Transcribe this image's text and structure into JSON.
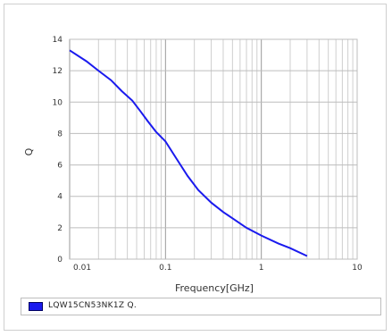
{
  "chart_data": {
    "type": "line",
    "xscale": "log",
    "xlim": [
      0.01,
      10
    ],
    "ylim": [
      0,
      14
    ],
    "grid": true,
    "xlabel": "Frequency[GHz]",
    "ylabel": "Q",
    "x_ticks": [
      {
        "value": 0.01,
        "label": "0.01"
      },
      {
        "value": 0.1,
        "label": "0.1"
      },
      {
        "value": 1,
        "label": "1"
      },
      {
        "value": 10,
        "label": "10"
      }
    ],
    "y_ticks": [
      {
        "value": 0,
        "label": "0"
      },
      {
        "value": 2,
        "label": "2"
      },
      {
        "value": 4,
        "label": "4"
      },
      {
        "value": 6,
        "label": "6"
      },
      {
        "value": 8,
        "label": "8"
      },
      {
        "value": 10,
        "label": "10"
      },
      {
        "value": 12,
        "label": "12"
      },
      {
        "value": 14,
        "label": "14"
      }
    ],
    "series": [
      {
        "name": "LQW15CN53NK1Z Q.",
        "color": "#1a1aee",
        "x": [
          0.01,
          0.015,
          0.02,
          0.027,
          0.035,
          0.045,
          0.055,
          0.065,
          0.08,
          0.1,
          0.13,
          0.17,
          0.22,
          0.3,
          0.4,
          0.5,
          0.7,
          1.0,
          1.5,
          2.0,
          3.0
        ],
        "y": [
          13.3,
          12.6,
          12.0,
          11.4,
          10.7,
          10.1,
          9.4,
          8.8,
          8.1,
          7.5,
          6.4,
          5.3,
          4.4,
          3.6,
          3.0,
          2.6,
          2.0,
          1.5,
          1.0,
          0.7,
          0.2
        ]
      }
    ]
  }
}
